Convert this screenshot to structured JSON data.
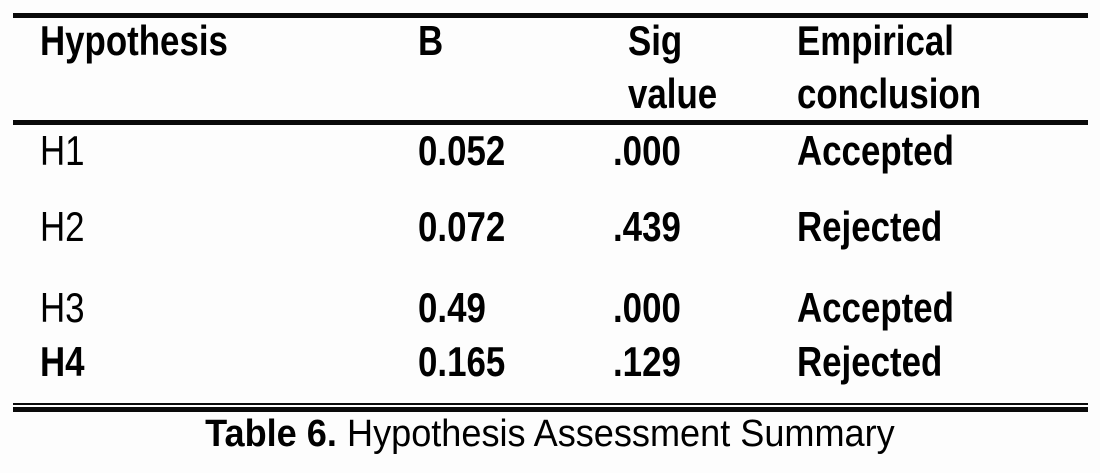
{
  "table": {
    "header": [
      {
        "line1": "Hypothesis",
        "line2": ""
      },
      {
        "line1": "B",
        "line2": ""
      },
      {
        "line1": "Sig",
        "line2": "value"
      },
      {
        "line1": "Empirical",
        "line2": "conclusion"
      }
    ],
    "rows": [
      {
        "hypothesis": "H1",
        "b": "0.052",
        "sig": ".000",
        "conclusion": "Accepted"
      },
      {
        "hypothesis": "H2",
        "b": "0.072",
        "sig": ".439",
        "conclusion": "Rejected"
      },
      {
        "hypothesis": "H3",
        "b": "0.49",
        "sig": ".000",
        "conclusion": "Accepted"
      },
      {
        "hypothesis": "H4",
        "b": "0.165",
        "sig": ".129",
        "conclusion": "Rejected"
      }
    ]
  },
  "caption": {
    "label": "Table 6.",
    "text": "Hypothesis Assessment Summary"
  },
  "colors": {
    "text": "#000000",
    "rule": "#0a0a0a",
    "background": "#fdfdfd"
  }
}
